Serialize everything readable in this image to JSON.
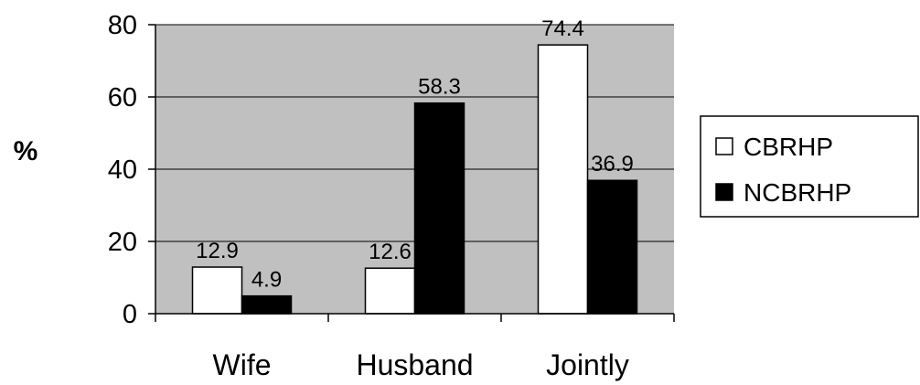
{
  "chart_data": {
    "type": "bar",
    "categories": [
      "Wife",
      "Husband",
      "Jointly"
    ],
    "series": [
      {
        "name": "CBRHP",
        "values": [
          12.9,
          12.6,
          74.4
        ],
        "labels": [
          "12.9",
          "12.6",
          "74.4"
        ]
      },
      {
        "name": "NCBRHP",
        "values": [
          4.9,
          58.3,
          36.9
        ],
        "labels": [
          "4.9",
          "58.3",
          "36.9"
        ]
      }
    ],
    "ylabel": "%",
    "xlabel": "",
    "ylim": [
      0,
      80
    ],
    "yticks": [
      "0",
      "20",
      "40",
      "60",
      "80"
    ],
    "grid": true,
    "legend": "right",
    "colors": {
      "plot_background": "#c0c0c0",
      "gridline": "#000000",
      "series": [
        "#ffffff",
        "#000000"
      ],
      "bar_outline": "#000000"
    }
  }
}
